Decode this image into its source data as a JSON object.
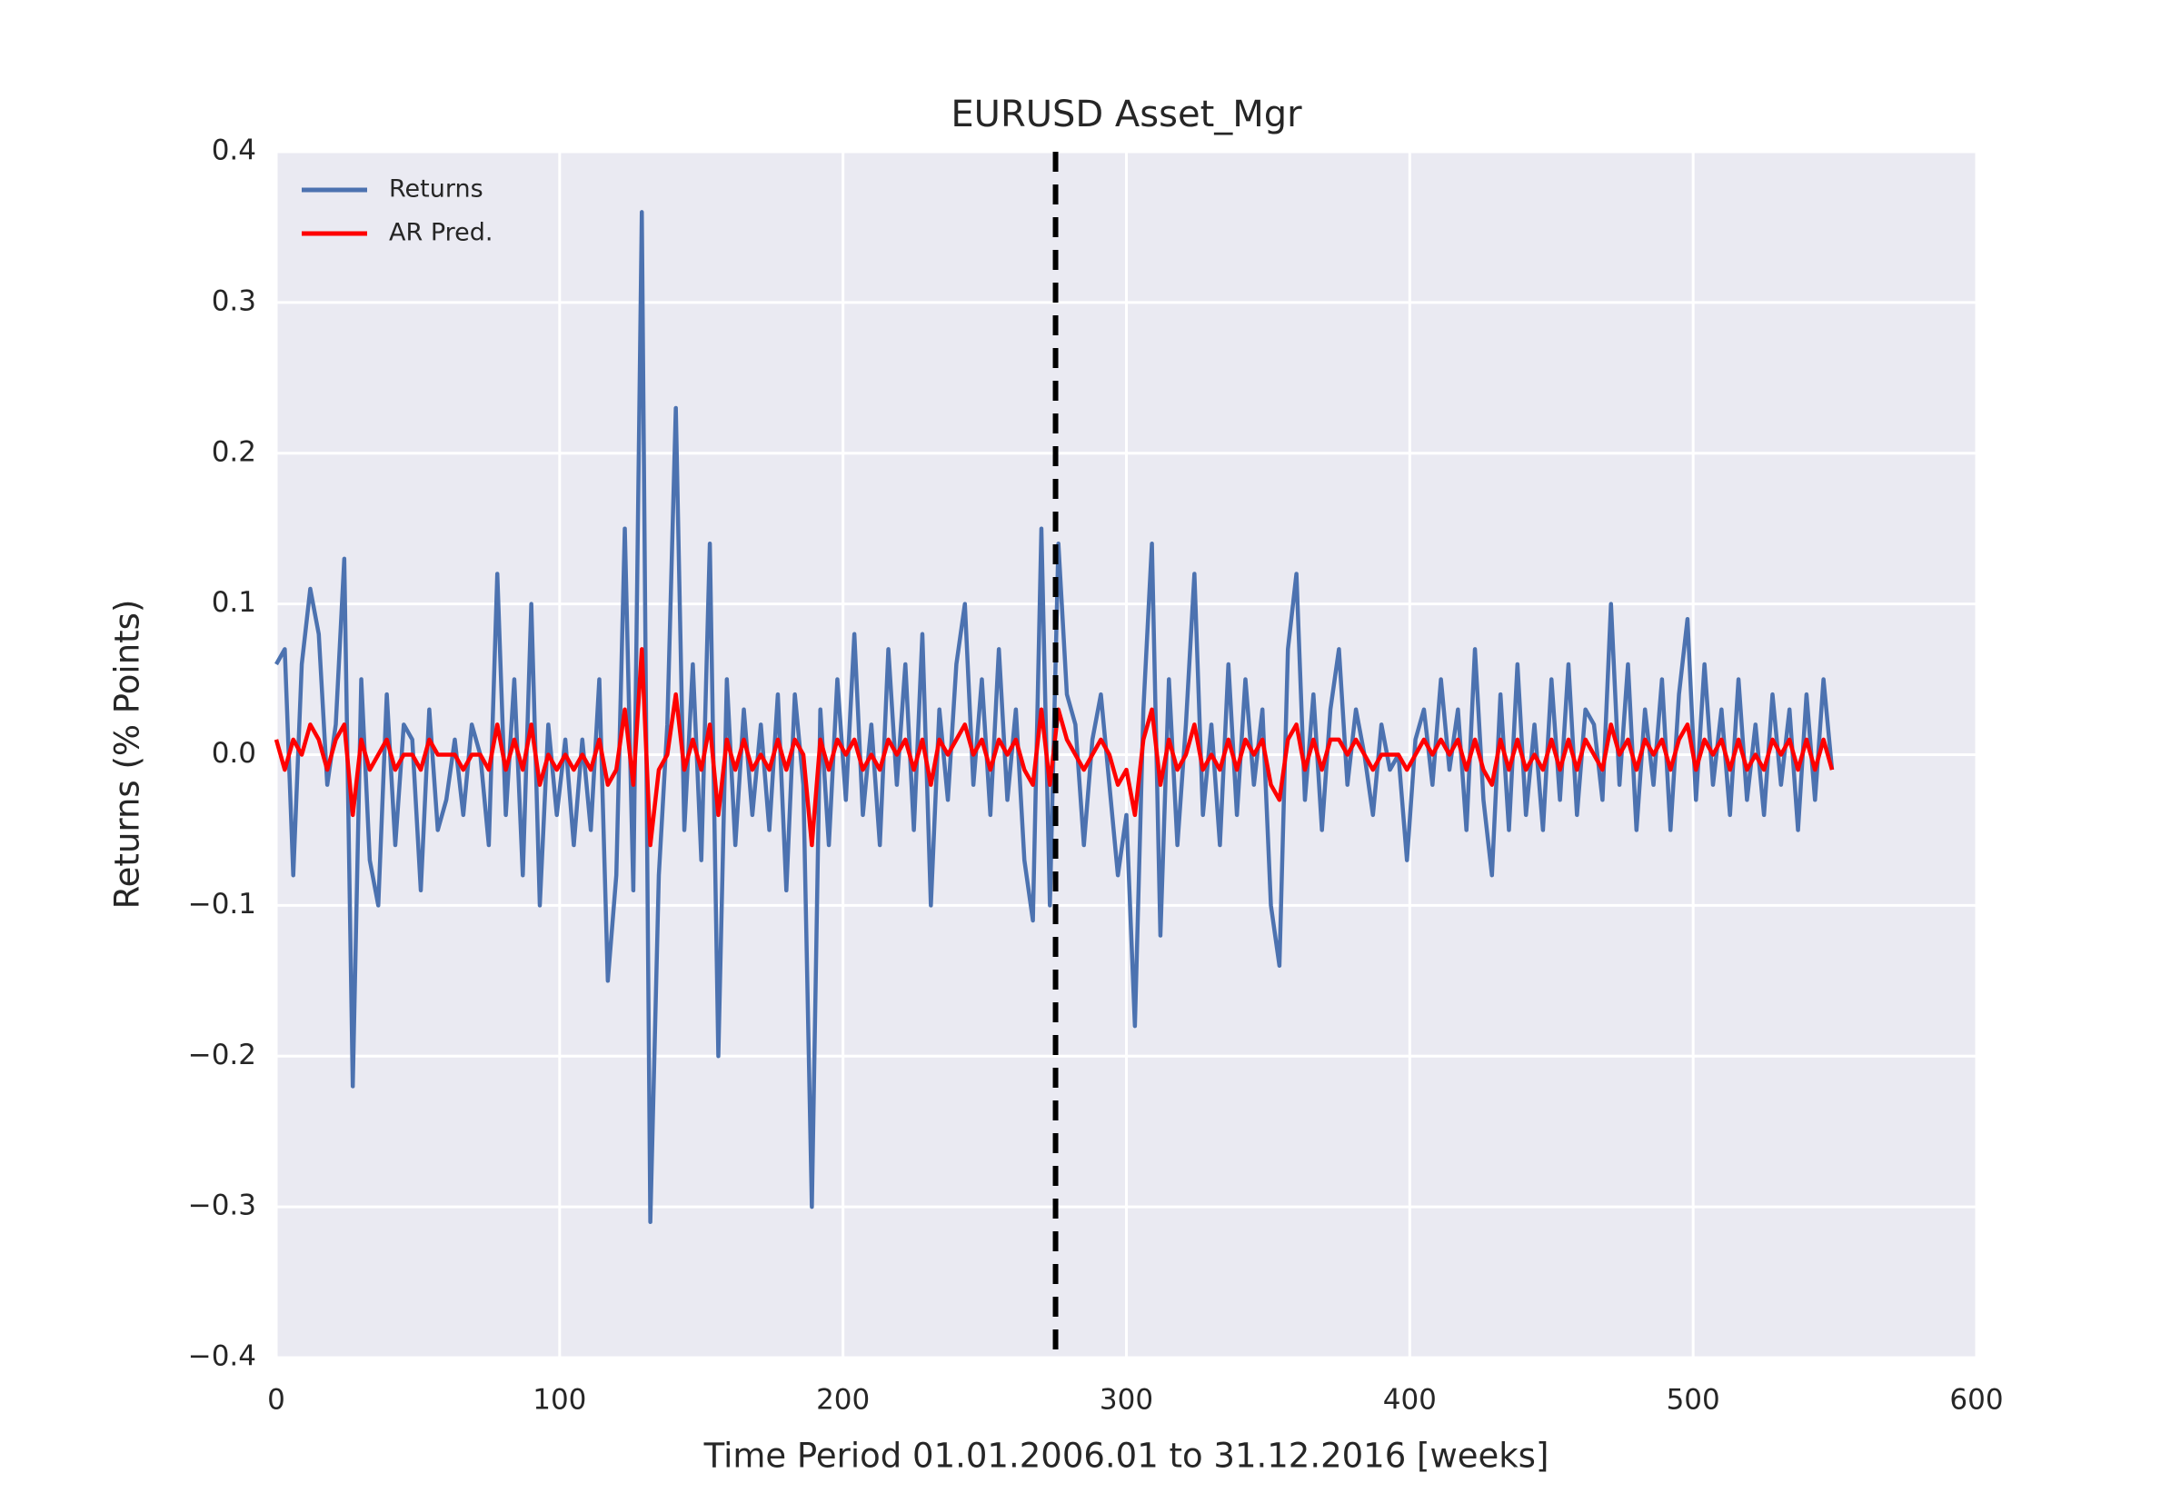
{
  "chart_data": {
    "type": "line",
    "title": "EURUSD Asset_Mgr",
    "x_label": "Time Period 01.01.2006.01 to 31.12.2016 [weeks]",
    "y_label": "Returns (% Points)",
    "xlim": [
      0,
      600
    ],
    "xticks": [
      0,
      100,
      200,
      300,
      400,
      500,
      600
    ],
    "ylim": [
      -0.4,
      0.4
    ],
    "yticks": [
      {
        "value": -0.4,
        "label": "−0.4"
      },
      {
        "value": -0.3,
        "label": "−0.3"
      },
      {
        "value": -0.2,
        "label": "−0.2"
      },
      {
        "value": -0.1,
        "label": "−0.1"
      },
      {
        "value": 0,
        "label": "0.0"
      },
      0.1,
      0.2,
      0.3,
      0.4
    ],
    "grid": true,
    "legend": "upper-left",
    "vline_x": 275,
    "vline_color": "#000000",
    "x": [
      0,
      3,
      6,
      9,
      12,
      15,
      18,
      21,
      24,
      27,
      30,
      33,
      36,
      39,
      42,
      45,
      48,
      51,
      54,
      57,
      60,
      63,
      66,
      69,
      72,
      75,
      78,
      81,
      84,
      87,
      90,
      93,
      96,
      99,
      102,
      105,
      108,
      111,
      114,
      117,
      120,
      123,
      126,
      129,
      132,
      135,
      138,
      141,
      144,
      147,
      150,
      153,
      156,
      159,
      162,
      165,
      168,
      171,
      174,
      177,
      180,
      183,
      186,
      189,
      192,
      195,
      198,
      201,
      204,
      207,
      210,
      213,
      216,
      219,
      222,
      225,
      228,
      231,
      234,
      237,
      240,
      243,
      246,
      249,
      252,
      255,
      258,
      261,
      264,
      267,
      270,
      273,
      276,
      279,
      282,
      285,
      288,
      291,
      294,
      297,
      300,
      303,
      306,
      309,
      312,
      315,
      318,
      321,
      324,
      327,
      330,
      333,
      336,
      339,
      342,
      345,
      348,
      351,
      354,
      357,
      360,
      363,
      366,
      369,
      372,
      375,
      378,
      381,
      384,
      387,
      390,
      393,
      396,
      399,
      402,
      405,
      408,
      411,
      414,
      417,
      420,
      423,
      426,
      429,
      432,
      435,
      438,
      441,
      444,
      447,
      450,
      453,
      456,
      459,
      462,
      465,
      468,
      471,
      474,
      477,
      480,
      483,
      486,
      489,
      492,
      495,
      498,
      501,
      504,
      507,
      510,
      513,
      516,
      519,
      522,
      525,
      528,
      531,
      534,
      537,
      540,
      543,
      546,
      549
    ],
    "series": [
      {
        "name": "Returns",
        "color": "#4c72b0",
        "values": [
          0.06,
          0.07,
          -0.08,
          0.06,
          0.11,
          0.08,
          -0.02,
          0.02,
          0.13,
          -0.22,
          0.05,
          -0.07,
          -0.1,
          0.04,
          -0.06,
          0.02,
          0.01,
          -0.09,
          0.03,
          -0.05,
          -0.03,
          0.01,
          -0.04,
          0.02,
          0.0,
          -0.06,
          0.12,
          -0.04,
          0.05,
          -0.08,
          0.1,
          -0.1,
          0.02,
          -0.04,
          0.01,
          -0.06,
          0.01,
          -0.05,
          0.05,
          -0.15,
          -0.08,
          0.15,
          -0.09,
          0.36,
          -0.31,
          -0.08,
          0.02,
          0.23,
          -0.05,
          0.06,
          -0.07,
          0.14,
          -0.2,
          0.05,
          -0.06,
          0.03,
          -0.04,
          0.02,
          -0.05,
          0.04,
          -0.09,
          0.04,
          -0.02,
          -0.3,
          0.03,
          -0.06,
          0.05,
          -0.03,
          0.08,
          -0.04,
          0.02,
          -0.06,
          0.07,
          -0.02,
          0.06,
          -0.05,
          0.08,
          -0.1,
          0.03,
          -0.03,
          0.06,
          0.1,
          -0.02,
          0.05,
          -0.04,
          0.07,
          -0.03,
          0.03,
          -0.07,
          -0.11,
          0.15,
          -0.1,
          0.14,
          0.04,
          0.02,
          -0.06,
          0.01,
          0.04,
          -0.02,
          -0.08,
          -0.04,
          -0.18,
          0.03,
          0.14,
          -0.12,
          0.05,
          -0.06,
          0.02,
          0.12,
          -0.04,
          0.02,
          -0.06,
          0.06,
          -0.04,
          0.05,
          -0.02,
          0.03,
          -0.1,
          -0.14,
          0.07,
          0.12,
          -0.03,
          0.04,
          -0.05,
          0.03,
          0.07,
          -0.02,
          0.03,
          0.0,
          -0.04,
          0.02,
          -0.01,
          0.0,
          -0.07,
          0.01,
          0.03,
          -0.02,
          0.05,
          -0.01,
          0.03,
          -0.05,
          0.07,
          -0.03,
          -0.08,
          0.04,
          -0.05,
          0.06,
          -0.04,
          0.02,
          -0.05,
          0.05,
          -0.03,
          0.06,
          -0.04,
          0.03,
          0.02,
          -0.03,
          0.1,
          -0.02,
          0.06,
          -0.05,
          0.03,
          -0.02,
          0.05,
          -0.05,
          0.04,
          0.09,
          -0.03,
          0.06,
          -0.02,
          0.03,
          -0.04,
          0.05,
          -0.03,
          0.02,
          -0.04,
          0.04,
          -0.02,
          0.03,
          -0.05,
          0.04,
          -0.03,
          0.05,
          -0.01
        ]
      },
      {
        "name": "AR Pred.",
        "color": "#ff0000",
        "values": [
          0.01,
          -0.01,
          0.01,
          0.0,
          0.02,
          0.01,
          -0.01,
          0.01,
          0.02,
          -0.04,
          0.01,
          -0.01,
          0.0,
          0.01,
          -0.01,
          0.0,
          0.0,
          -0.01,
          0.01,
          0.0,
          0.0,
          0.0,
          -0.01,
          0.0,
          0.0,
          -0.01,
          0.02,
          -0.01,
          0.01,
          -0.01,
          0.02,
          -0.02,
          0.0,
          -0.01,
          0.0,
          -0.01,
          0.0,
          -0.01,
          0.01,
          -0.02,
          -0.01,
          0.03,
          -0.02,
          0.07,
          -0.06,
          -0.01,
          0.0,
          0.04,
          -0.01,
          0.01,
          -0.01,
          0.02,
          -0.04,
          0.01,
          -0.01,
          0.01,
          -0.01,
          0.0,
          -0.01,
          0.01,
          -0.01,
          0.01,
          0.0,
          -0.06,
          0.01,
          -0.01,
          0.01,
          0.0,
          0.01,
          -0.01,
          0.0,
          -0.01,
          0.01,
          0.0,
          0.01,
          -0.01,
          0.01,
          -0.02,
          0.01,
          0.0,
          0.01,
          0.02,
          0.0,
          0.01,
          -0.01,
          0.01,
          0.0,
          0.01,
          -0.01,
          -0.02,
          0.03,
          -0.02,
          0.03,
          0.01,
          0.0,
          -0.01,
          0.0,
          0.01,
          0.0,
          -0.02,
          -0.01,
          -0.04,
          0.01,
          0.03,
          -0.02,
          0.01,
          -0.01,
          0.0,
          0.02,
          -0.01,
          0.0,
          -0.01,
          0.01,
          -0.01,
          0.01,
          0.0,
          0.01,
          -0.02,
          -0.03,
          0.01,
          0.02,
          -0.01,
          0.01,
          -0.01,
          0.01,
          0.01,
          0.0,
          0.01,
          0.0,
          -0.01,
          0.0,
          0.0,
          0.0,
          -0.01,
          0.0,
          0.01,
          0.0,
          0.01,
          0.0,
          0.01,
          -0.01,
          0.01,
          -0.01,
          -0.02,
          0.01,
          -0.01,
          0.01,
          -0.01,
          0.0,
          -0.01,
          0.01,
          -0.01,
          0.01,
          -0.01,
          0.01,
          0.0,
          -0.01,
          0.02,
          0.0,
          0.01,
          -0.01,
          0.01,
          0.0,
          0.01,
          -0.01,
          0.01,
          0.02,
          -0.01,
          0.01,
          0.0,
          0.01,
          -0.01,
          0.01,
          -0.01,
          0.0,
          -0.01,
          0.01,
          0.0,
          0.01,
          -0.01,
          0.01,
          -0.01,
          0.01,
          -0.01
        ]
      }
    ]
  }
}
